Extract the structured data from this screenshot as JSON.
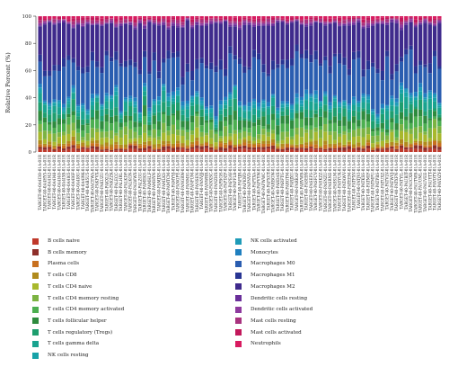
{
  "chart_data": {
    "type": "bar",
    "stacked": true,
    "ylabel": "Relative Percent (%)",
    "ylim": [
      0,
      100
    ],
    "yticks": [
      0,
      20,
      40,
      60,
      80,
      100
    ],
    "categories": [
      "TARGET-40-0A4I3O-01A-01R",
      "TARGET-40-0A4HY5-01A-01R",
      "TARGET-40-0A4I42-01A-01R",
      "TARGET-40-0A4I48-01A-01R",
      "TARGET-40-0A4I4O-01A-01R",
      "TARGET-40-0A4I5B-01A-01R",
      "TARGET-40-0A4I65-01A-01R",
      "TARGET-40-0A4I6F-01A-01R",
      "TARGET-40-0A4I8U-01A-01R",
      "TARGET-40-0A4I9K-01A-01R",
      "TARGET-40-0AB5U5-01A-01R",
      "TARGET-40-0ACEWA-01A-01R",
      "TARGET-40-PAKFVX-01A-01R",
      "TARGET-40-PAKUZU-01A-01R",
      "TARGET-40-PAKXLD-01A-01R",
      "TARGET-40-PAKZZK-01A-01R",
      "TARGET-40-PALECC-01A-01R",
      "TARGET-40-PALHRL-01A-01R",
      "TARGET-40-PALKDP-01A-01R",
      "TARGET-40-PALKGN-01A-01R",
      "TARGET-40-PALWWX-01A-01R",
      "TARGET-40-PALZGU-01A-01R",
      "TARGET-40-PAMEKS-01A-01R",
      "TARGET-40-PAMHLF-01A-01R",
      "TARGET-40-PAMHYN-01A-01R",
      "TARGET-40-PAMJXS-01A-01R",
      "TARGET-40-PAMLKS-01A-01R",
      "TARGET-40-PAMTCM-01A-01R",
      "TARGET-40-PAMYYJ-01A-01R",
      "TARGET-40-PANGPE-01A-01R",
      "TARGET-40-PANGRW-01A-01R",
      "TARGET-40-PANMIG-01A-01R",
      "TARGET-40-PANPUM-01A-01R",
      "TARGET-40-PANSEN-01A-01R",
      "TARGET-40-PANVJJ-01A-01R",
      "TARGET-40-PANWRR-01A-01R",
      "TARGET-40-PANXSC-01A-01R",
      "TARGET-40-PANZHX-01A-01R",
      "TARGET-40-PAPBGH-01A-01R",
      "TARGET-40-PAPDZF-01A-01R",
      "TARGET-40-PAPEAV-01A-01R",
      "TARGET-40-PAPFLB-01A-01R",
      "TARGET-40-PAPIJR-01A-01R",
      "TARGET-40-PAPKWD-01A-01R",
      "TARGET-40-PAPNVD-01A-01R",
      "TARGET-40-PAPTXA-01A-01R",
      "TARGET-40-PAPVYW-01A-01R",
      "TARGET-40-PAPWWC-01A-01R",
      "TARGET-40-PAPXGT-01A-01R",
      "TARGET-40-PARBGW-01A-01R",
      "TARGET-40-PARDAX-01A-01R",
      "TARGET-40-PARFTG-01A-01R",
      "TARGET-40-PARGTM-01A-01R",
      "TARGET-40-PARJXU-01A-01R",
      "TARGET-40-PARKAF-01A-01R",
      "TARGET-40-PARVWB-01A-01R",
      "TARGET-40-PASEBY-01A-01R",
      "TARGET-40-PASEFS-01A-01R",
      "TARGET-40-PASFCV-01A-01R",
      "TARGET-40-PASKZZ-01A-01R",
      "TARGET-40-PASNZU-01A-01R",
      "TARGET-40-PASRNE-01A-01R",
      "TARGET-40-PASSLM-01A-01R",
      "TARGET-40-PASYUK-01A-01R",
      "TARGET-40-PATAWV-01A-01R",
      "TARGET-40-PATEEM-01A-01R",
      "TARGET-40-PATFXV-01A-01R",
      "TARGET-40-PATJVI-01A-01R",
      "TARGET-40-PATKSS-01A-01R",
      "TARGET-40-PATMIF-01A-01R",
      "TARGET-40-PATMPU-01A-01R",
      "TARGET-40-PATPBS-01A-01R",
      "TARGET-40-PATUXZ-01A-01R",
      "TARGET-40-PATVLV-01A-01R",
      "TARGET-40-PATWVJ-01A-01R",
      "TARGET-40-PATXFN-01A-01R",
      "TARGET-40-PATYIL-01A-01R",
      "TARGET-40-PAUBIT-01A-01R",
      "TARGET-40-PAUCXR-01A-01R",
      "TARGET-40-PAUTWB-01A-01R",
      "TARGET-40-PAUUML-01A-01R",
      "TARGET-40-PAUVEE-01A-01R",
      "TARGET-40-PAUYTT-01A-01R",
      "TARGET-40-PAVDTY-01A-01R",
      "TARGET-40-PAVDZY-01A-01R"
    ],
    "series": [
      {
        "name": "B cells naive",
        "color": "#c0392b"
      },
      {
        "name": "B cells memory",
        "color": "#8e2f2a"
      },
      {
        "name": "Plasma cells",
        "color": "#c8701e"
      },
      {
        "name": "T cells CD8",
        "color": "#b08a1c"
      },
      {
        "name": "T cells CD4 naive",
        "color": "#a8b82c"
      },
      {
        "name": "T cells CD4 memory resting",
        "color": "#7cb342"
      },
      {
        "name": "T cells CD4 memory activated",
        "color": "#4caf50"
      },
      {
        "name": "T cells follicular helper",
        "color": "#2e8b3e"
      },
      {
        "name": "T cells regulatory (Tregs)",
        "color": "#1e9e6e"
      },
      {
        "name": "T cells gamma delta",
        "color": "#19a38f"
      },
      {
        "name": "NK cells resting",
        "color": "#17a2a8"
      },
      {
        "name": "NK cells activated",
        "color": "#1f9bb8"
      },
      {
        "name": "Monocytes",
        "color": "#1f7fbf"
      },
      {
        "name": "Macrophages M0",
        "color": "#2a5db0"
      },
      {
        "name": "Macrophages M1",
        "color": "#283593"
      },
      {
        "name": "Macrophages M2",
        "color": "#3f2a8c"
      },
      {
        "name": "Dendritic cells resting",
        "color": "#6a2f9a"
      },
      {
        "name": "Dendritic cells activated",
        "color": "#8e3a9e"
      },
      {
        "name": "Mast cells resting",
        "color": "#a8327e"
      },
      {
        "name": "Mast cells activated",
        "color": "#c2185b"
      },
      {
        "name": "Neutrophils",
        "color": "#d81b60"
      }
    ],
    "grid": false,
    "legend_position": "bottom"
  }
}
